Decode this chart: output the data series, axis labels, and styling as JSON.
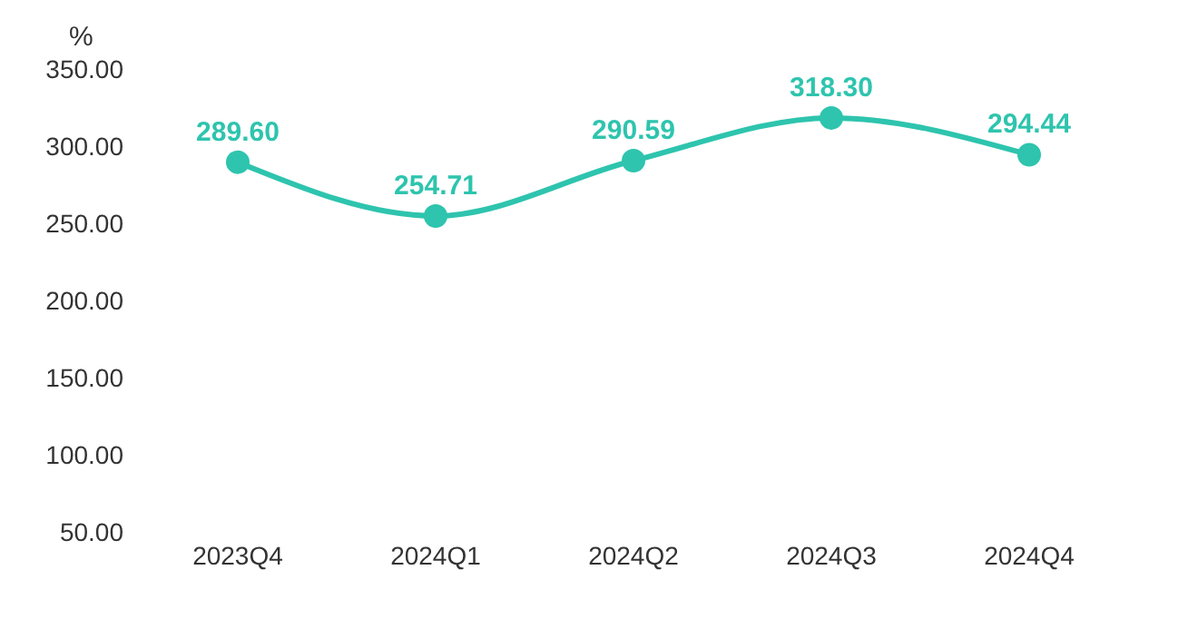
{
  "chart_data": {
    "type": "line",
    "ylabel": "%",
    "categories": [
      "2023Q4",
      "2024Q1",
      "2024Q2",
      "2024Q3",
      "2024Q4"
    ],
    "series": [
      {
        "color": "#2ec4ae",
        "values": [
          289.6,
          254.71,
          290.59,
          318.3,
          294.44
        ],
        "value_labels": [
          "289.60",
          "254.71",
          "290.59",
          "318.30",
          "294.44"
        ]
      }
    ],
    "ylim": [
      50,
      350
    ],
    "yticks": [
      {
        "value": 50,
        "label": "50.00"
      },
      {
        "value": 100,
        "label": "100.00"
      },
      {
        "value": 150,
        "label": "150.00"
      },
      {
        "value": 200,
        "label": "200.00"
      },
      {
        "value": 250,
        "label": "250.00"
      },
      {
        "value": 300,
        "label": "300.00"
      },
      {
        "value": 350,
        "label": "350.00"
      }
    ],
    "marker": "circle",
    "grid": false,
    "legend": false
  }
}
